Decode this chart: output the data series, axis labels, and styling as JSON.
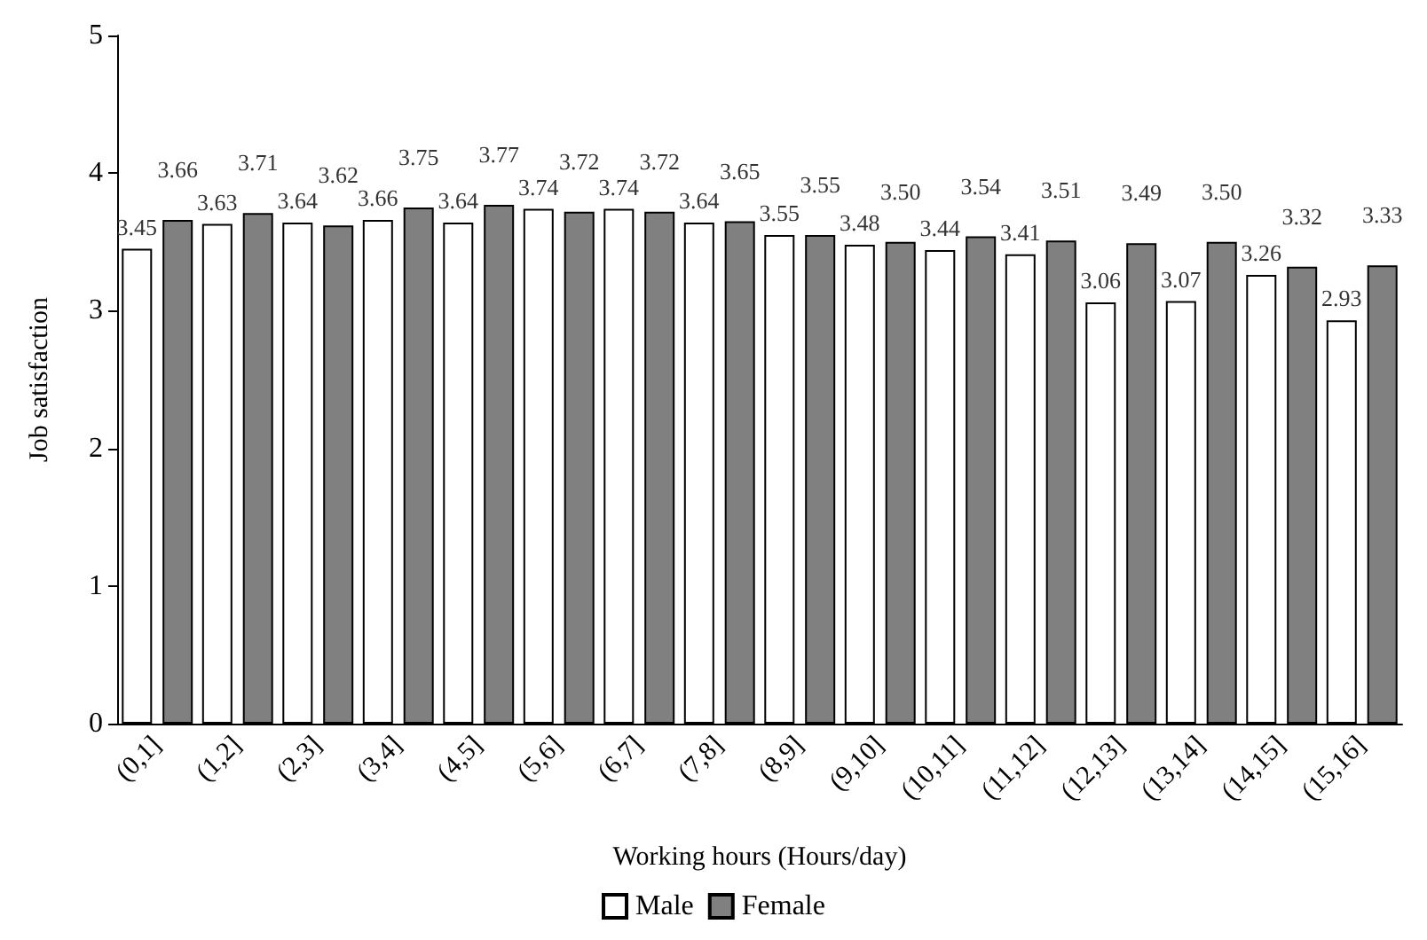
{
  "chart_data": {
    "type": "bar",
    "xlabel": "Working hours (Hours/day)",
    "ylabel": "Job satisfaction",
    "categories": [
      "(0,1]",
      "(1,2]",
      "(2,3]",
      "(3,4]",
      "(4,5]",
      "(5,6]",
      "(6,7]",
      "(7,8]",
      "(8,9]",
      "(9,10]",
      "(10,11]",
      "(11,12]",
      "(12,13]",
      "(13,14]",
      "(14,15]",
      "(15,16]"
    ],
    "series": [
      {
        "name": "Male",
        "color": "#ffffff",
        "values": [
          3.45,
          3.63,
          3.64,
          3.66,
          3.64,
          3.74,
          3.74,
          3.64,
          3.55,
          3.48,
          3.44,
          3.41,
          3.06,
          3.07,
          3.26,
          2.93
        ],
        "value_labels": [
          "3.45",
          "3.63",
          "3.64",
          "3.66",
          "3.64",
          "3.74",
          "3.74",
          "3.64",
          "3.55",
          "3.48",
          "3.44",
          "3.41",
          "3.06",
          "3.07",
          "3.26",
          "2.93"
        ]
      },
      {
        "name": "Female",
        "color": "#808080",
        "values": [
          3.66,
          3.71,
          3.62,
          3.75,
          3.77,
          3.72,
          3.72,
          3.65,
          3.55,
          3.5,
          3.54,
          3.51,
          3.49,
          3.5,
          3.32,
          3.33
        ],
        "value_labels": [
          "3.66",
          "3.71",
          "3.62",
          "3.75",
          "3.77",
          "3.72",
          "3.72",
          "3.65",
          "3.55",
          "3.50",
          "3.54",
          "3.51",
          "3.49",
          "3.50",
          "3.32",
          "3.33"
        ]
      }
    ],
    "ylim": [
      0,
      5
    ],
    "yticks": [
      0,
      1,
      2,
      3,
      4,
      5
    ],
    "grid": false,
    "legend": "bottom"
  }
}
